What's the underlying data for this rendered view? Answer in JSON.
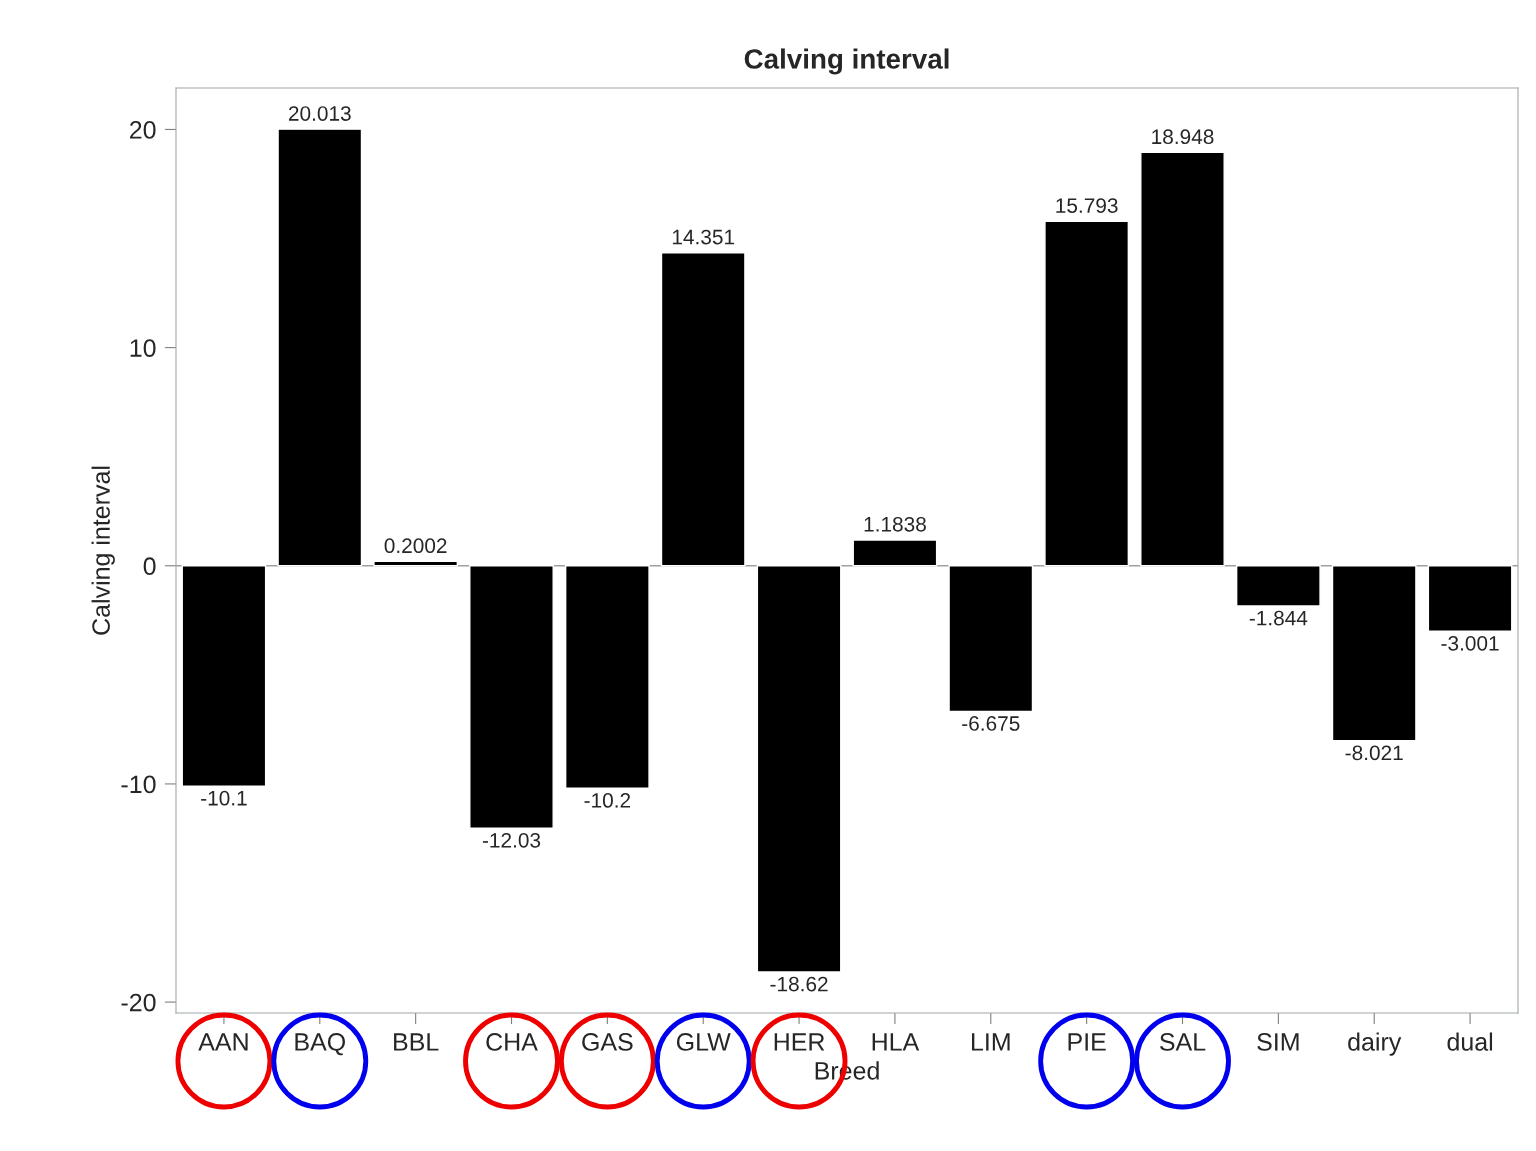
{
  "chart_data": {
    "type": "bar",
    "title": "Calving interval",
    "xlabel": "Breed",
    "ylabel": "Calving interval",
    "categories": [
      "AAN",
      "BAQ",
      "BBL",
      "CHA",
      "GAS",
      "GLW",
      "HER",
      "HLA",
      "LIM",
      "PIE",
      "SAL",
      "SIM",
      "dairy",
      "dual"
    ],
    "values": [
      -10.1,
      20.013,
      0.2002,
      -12.03,
      -10.2,
      14.351,
      -18.62,
      1.1838,
      -6.675,
      15.793,
      18.948,
      -1.844,
      -8.021,
      -3.001
    ],
    "color": "#000000",
    "ylim": [
      -20.5,
      21.9
    ],
    "yticks": [
      -20,
      -10,
      0,
      10,
      20
    ],
    "ref_lines": [
      {
        "axis": "y",
        "value": 0,
        "color": "#a0a0a0"
      }
    ],
    "data_labels": true,
    "grid": false,
    "legend": false
  }
}
